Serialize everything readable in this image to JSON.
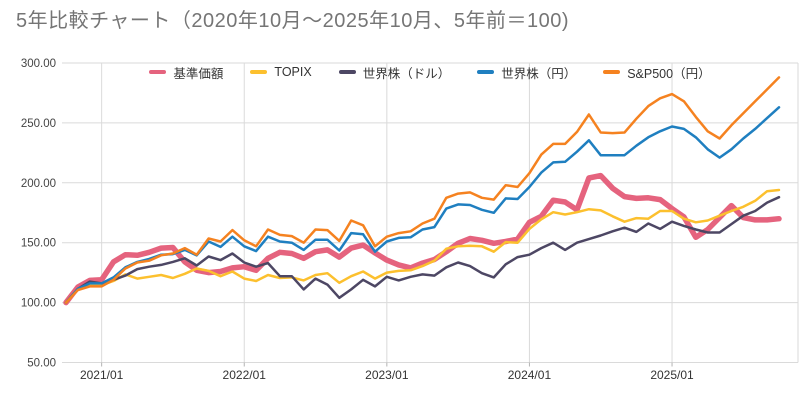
{
  "title": "5年比較チャート（2020年10月～2025年10月、5年前＝100)",
  "chart_data": {
    "type": "line",
    "x_unit": "month",
    "x_start": "2020/10",
    "x_end": "2025/10",
    "x_tick_labels": [
      "2021/01",
      "2022/01",
      "2023/01",
      "2024/01",
      "2025/01"
    ],
    "x_tick_month_index": [
      3,
      15,
      27,
      39,
      51
    ],
    "y_tick_labels": [
      "300.00",
      "250.00",
      "200.00",
      "150.00",
      "100.00",
      "50.00"
    ],
    "y_tick_values": [
      300,
      250,
      200,
      150,
      100,
      50
    ],
    "ylim": [
      50,
      300
    ],
    "grid": true,
    "legend_position": "top",
    "colors": {
      "grid": "#dadada",
      "tick": "#b3b3b3",
      "axis_text": "#444444",
      "x_text": "#333333",
      "title_text": "#757575"
    },
    "series": [
      {
        "key": "fund-nav",
        "name": "基準価額",
        "color": "#e5637e",
        "line_width": 5.5,
        "values": [
          100,
          113,
          118.5,
          119,
          134,
          140,
          139.5,
          142,
          145.5,
          146,
          134,
          127,
          125,
          126,
          129,
          130,
          127,
          137,
          142,
          141,
          137,
          142.5,
          144,
          138,
          145.5,
          148,
          141.5,
          135.5,
          131.5,
          129,
          133,
          136,
          142.5,
          149.5,
          153.5,
          152,
          149.5,
          151,
          153,
          167,
          172,
          185.5,
          184,
          177.5,
          204,
          206,
          195.5,
          188.5,
          187,
          187.5,
          186,
          178.5,
          171.5,
          154.5,
          161,
          171,
          181,
          171,
          169,
          169,
          170
        ]
      },
      {
        "key": "topix",
        "name": "TOPIX",
        "color": "#fcc02e",
        "line_width": 2.5,
        "values": [
          100,
          111,
          114.5,
          114.5,
          118,
          123.5,
          120,
          121.5,
          123,
          120.5,
          124,
          128.5,
          126.5,
          122,
          126,
          120,
          118,
          123,
          120.5,
          121,
          118.5,
          123,
          124.5,
          116.5,
          122,
          126,
          120,
          125,
          126.5,
          127,
          130.5,
          135,
          145,
          147,
          147.5,
          147,
          142.5,
          150.5,
          150,
          161.5,
          169.5,
          175.5,
          173.5,
          175.5,
          178,
          177,
          172,
          167.5,
          170.5,
          170,
          176.5,
          176.5,
          170,
          167,
          168.5,
          172.5,
          176.5,
          180,
          185,
          193,
          194
        ]
      },
      {
        "key": "world-usd",
        "name": "世界株（ドル）",
        "color": "#4d4764",
        "line_width": 2.5,
        "values": [
          100,
          111.5,
          117.5,
          116,
          119,
          122.5,
          128,
          130,
          131.5,
          134,
          137,
          131,
          138.5,
          135.5,
          141,
          133.5,
          130,
          133,
          122,
          122,
          111,
          120,
          115,
          104,
          111,
          119,
          113.5,
          121.5,
          118.5,
          121.5,
          123.5,
          122.5,
          129.5,
          133.5,
          130.5,
          124.5,
          121,
          132,
          138,
          140,
          145.5,
          150,
          144,
          150,
          153,
          156,
          159.5,
          162.5,
          159,
          166,
          161.5,
          167.5,
          164,
          161,
          158.5,
          158.5,
          165.5,
          172.5,
          176.5,
          183.5,
          188
        ]
      },
      {
        "key": "world-jpy",
        "name": "世界株（円）",
        "color": "#1f7fc0",
        "line_width": 2.5,
        "values": [
          100,
          111.5,
          116,
          116,
          121,
          129.5,
          134,
          136.5,
          140,
          140.5,
          144,
          139.5,
          151,
          146.5,
          155,
          147,
          143,
          155,
          151,
          150,
          144,
          152.5,
          152.5,
          143.5,
          158,
          157,
          142.5,
          151,
          154,
          154.5,
          161,
          163,
          178.5,
          182,
          181.5,
          177.5,
          175,
          187,
          186.5,
          196.5,
          208.5,
          217,
          217.5,
          226,
          235.5,
          223,
          223,
          223,
          231,
          238,
          243,
          247,
          245,
          238,
          228,
          221,
          228,
          237,
          245,
          254,
          263
        ]
      },
      {
        "key": "sp500-jpy",
        "name": "S&P500（円）",
        "color": "#f58220",
        "line_width": 2.5,
        "values": [
          100,
          110.5,
          113.5,
          113.5,
          119,
          128.5,
          133.5,
          135,
          139.5,
          141,
          145.5,
          140,
          153.5,
          151,
          160.5,
          152,
          147,
          161,
          156.5,
          155.5,
          150,
          161,
          160.5,
          151.5,
          168.5,
          164.5,
          147,
          155,
          158,
          159.5,
          166,
          170,
          187.5,
          191,
          192,
          187.5,
          186,
          198,
          196.5,
          208,
          223.5,
          232.5,
          232.5,
          242.5,
          257,
          242,
          241.5,
          242,
          253.5,
          264,
          270.5,
          274,
          268,
          255,
          243,
          237,
          248,
          258,
          268,
          278,
          288
        ]
      }
    ]
  }
}
